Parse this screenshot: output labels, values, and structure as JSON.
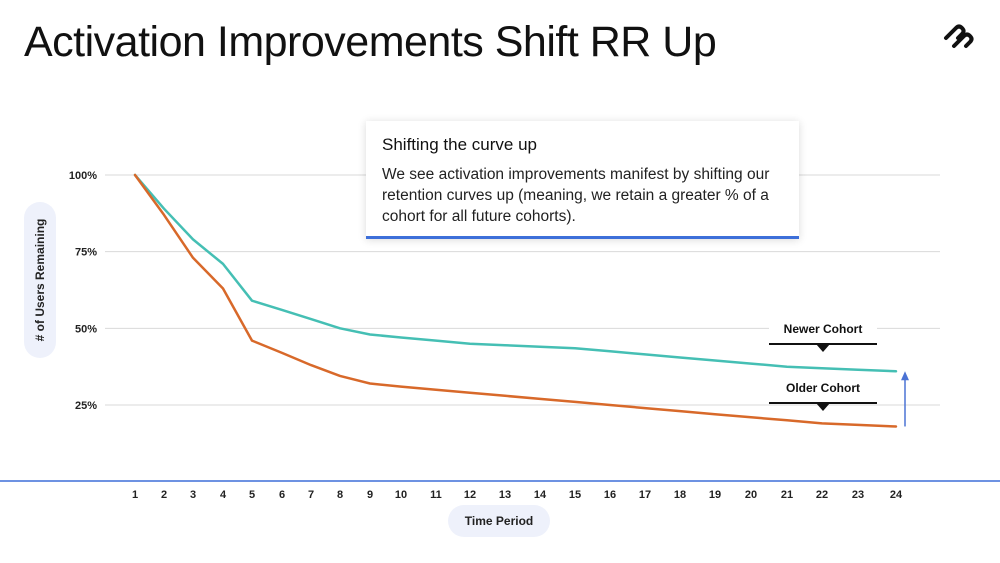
{
  "slide": {
    "title": "Activation Improvements Shift RR Up"
  },
  "callout": {
    "heading": "Shifting the curve up",
    "body": "We see activation improvements manifest by shifting our retention curves up (meaning, we retain a greater % of a cohort for all future cohorts)."
  },
  "colors": {
    "newer": "#45bfb4",
    "older": "#d8692a",
    "arrow": "#4a72d4",
    "baseline": "#3d6fd9",
    "grid": "#d9d9d9"
  },
  "chart_data": {
    "type": "line",
    "title": "",
    "xlabel": "Time Period",
    "ylabel": "# of Users Remaining",
    "x": [
      1,
      2,
      3,
      4,
      5,
      6,
      7,
      8,
      9,
      10,
      11,
      12,
      13,
      14,
      15,
      16,
      17,
      18,
      19,
      20,
      21,
      22,
      23,
      24
    ],
    "yticks": [
      "25%",
      "50%",
      "75%",
      "100%"
    ],
    "ytick_values": [
      25,
      50,
      75,
      100
    ],
    "ylim": [
      0,
      100
    ],
    "grid": true,
    "series": [
      {
        "name": "Newer Cohort",
        "values": [
          100,
          89,
          79,
          71,
          59,
          56,
          53,
          50,
          48,
          47,
          46,
          45,
          44.5,
          44,
          43.5,
          42.5,
          41.5,
          40.5,
          39.5,
          38.5,
          37.5,
          37,
          36.5,
          36
        ]
      },
      {
        "name": "Older Cohort",
        "values": [
          100,
          87,
          73,
          63,
          46,
          42,
          38,
          34.5,
          32,
          31,
          30,
          29,
          28,
          27,
          26,
          25,
          24,
          23,
          22,
          21,
          20,
          19,
          18.5,
          18
        ]
      }
    ]
  }
}
